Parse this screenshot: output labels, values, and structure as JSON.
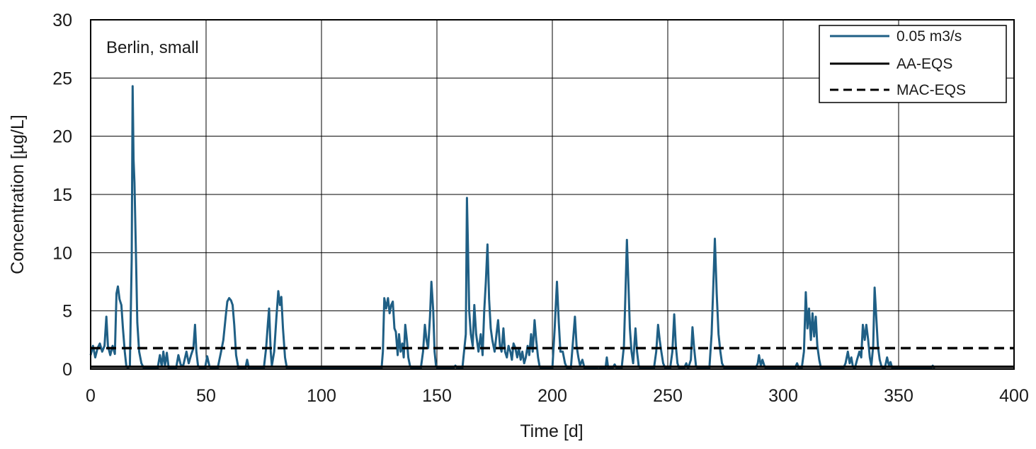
{
  "chart_data": {
    "type": "line",
    "annotation": "Berlin, small",
    "xlabel": "Time [d]",
    "ylabel": "Concentration [µg/L]",
    "xlim": [
      0,
      400
    ],
    "ylim": [
      0,
      30
    ],
    "xticks": [
      "0",
      "50",
      "100",
      "150",
      "200",
      "250",
      "300",
      "350",
      "400"
    ],
    "yticks": [
      "0",
      "5",
      "10",
      "15",
      "20",
      "25",
      "30"
    ],
    "grid": true,
    "legend_position": "top-right",
    "legend": [
      "0.05 m3/s",
      "AA-EQS",
      "MAC-EQS"
    ],
    "series": [
      {
        "name": "0.05 m3/s",
        "color": "#1f5f85",
        "style": "solid",
        "points": [
          [
            0,
            1.2
          ],
          [
            1,
            2.0
          ],
          [
            2,
            1.0
          ],
          [
            3,
            1.8
          ],
          [
            4,
            2.2
          ],
          [
            5,
            1.5
          ],
          [
            6,
            2.0
          ],
          [
            6.8,
            4.5
          ],
          [
            7.5,
            2.0
          ],
          [
            8.5,
            1.2
          ],
          [
            9.5,
            2.0
          ],
          [
            10.5,
            1.3
          ],
          [
            11.2,
            6.5
          ],
          [
            11.8,
            7.1
          ],
          [
            12.5,
            6.0
          ],
          [
            13.3,
            5.5
          ],
          [
            14,
            3.5
          ],
          [
            14.8,
            1.5
          ],
          [
            15.5,
            0.2
          ],
          [
            16.2,
            0.1
          ],
          [
            17,
            0.3
          ],
          [
            17.8,
            9.5
          ],
          [
            18.2,
            24.3
          ],
          [
            18.6,
            18.0
          ],
          [
            19,
            16.0
          ],
          [
            19.5,
            11.0
          ],
          [
            20.2,
            4.0
          ],
          [
            21,
            1.5
          ],
          [
            22,
            0.5
          ],
          [
            23,
            0.1
          ],
          [
            25,
            0.05
          ],
          [
            29,
            0.05
          ],
          [
            30,
            1.2
          ],
          [
            30.8,
            0.2
          ],
          [
            31.5,
            1.5
          ],
          [
            32.2,
            0.3
          ],
          [
            33,
            1.4
          ],
          [
            33.8,
            0.1
          ],
          [
            35,
            0.05
          ],
          [
            37,
            0.05
          ],
          [
            38,
            1.2
          ],
          [
            39,
            0.4
          ],
          [
            40,
            0.2
          ],
          [
            41.5,
            1.5
          ],
          [
            42.5,
            0.5
          ],
          [
            43.5,
            1.2
          ],
          [
            44.5,
            1.8
          ],
          [
            45.2,
            3.8
          ],
          [
            45.8,
            1.5
          ],
          [
            46.5,
            0.3
          ],
          [
            47.5,
            0.05
          ],
          [
            49.5,
            0.05
          ],
          [
            50.5,
            1.1
          ],
          [
            51.5,
            0.2
          ],
          [
            52.5,
            0.05
          ],
          [
            55,
            0.05
          ],
          [
            56.5,
            1.5
          ],
          [
            57.5,
            2.5
          ],
          [
            58.5,
            4.5
          ],
          [
            59.2,
            5.8
          ],
          [
            60,
            6.1
          ],
          [
            60.8,
            5.9
          ],
          [
            61.5,
            5.5
          ],
          [
            62.2,
            3.8
          ],
          [
            63,
            1.2
          ],
          [
            64,
            0.1
          ],
          [
            65,
            0.05
          ],
          [
            67,
            0.05
          ],
          [
            67.8,
            0.8
          ],
          [
            68.6,
            0.05
          ],
          [
            75,
            0.05
          ],
          [
            76,
            1.8
          ],
          [
            76.8,
            4.0
          ],
          [
            77.3,
            5.2
          ],
          [
            78,
            1.5
          ],
          [
            78.5,
            0.3
          ],
          [
            79.5,
            1.5
          ],
          [
            80.5,
            4.5
          ],
          [
            81.3,
            6.7
          ],
          [
            82,
            5.5
          ],
          [
            82.6,
            6.2
          ],
          [
            83.3,
            3.5
          ],
          [
            84.2,
            1.0
          ],
          [
            85,
            0.1
          ],
          [
            86,
            0.05
          ],
          [
            90,
            0.05
          ],
          [
            92,
            0.15
          ],
          [
            94,
            0.05
          ],
          [
            110,
            0.05
          ],
          [
            126,
            0.05
          ],
          [
            126.6,
            1.5
          ],
          [
            127.2,
            6.1
          ],
          [
            128,
            5.2
          ],
          [
            128.8,
            6.1
          ],
          [
            129.5,
            4.8
          ],
          [
            130.2,
            5.5
          ],
          [
            130.9,
            5.8
          ],
          [
            131.6,
            3.5
          ],
          [
            132.2,
            3.2
          ],
          [
            133,
            1.2
          ],
          [
            133.6,
            3.0
          ],
          [
            134.3,
            1.5
          ],
          [
            135,
            2.2
          ],
          [
            135.6,
            1.0
          ],
          [
            136.3,
            3.8
          ],
          [
            137,
            2.5
          ],
          [
            137.6,
            1.0
          ],
          [
            138.3,
            0.3
          ],
          [
            139,
            0.05
          ],
          [
            143,
            0.05
          ],
          [
            144,
            1.5
          ],
          [
            144.8,
            3.8
          ],
          [
            145.5,
            2.5
          ],
          [
            146.2,
            1.8
          ],
          [
            147,
            4.5
          ],
          [
            147.6,
            7.5
          ],
          [
            148.4,
            5.0
          ],
          [
            149,
            1.5
          ],
          [
            149.6,
            0.3
          ],
          [
            150.3,
            0.05
          ],
          [
            157,
            0.05
          ],
          [
            158,
            0.3
          ],
          [
            159,
            0.05
          ],
          [
            161,
            0.05
          ],
          [
            162.5,
            3.0
          ],
          [
            163,
            14.7
          ],
          [
            163.5,
            10.0
          ],
          [
            164,
            5.0
          ],
          [
            164.7,
            3.0
          ],
          [
            165.5,
            2.0
          ],
          [
            166.2,
            5.5
          ],
          [
            167,
            3.0
          ],
          [
            168,
            1.5
          ],
          [
            169,
            3.0
          ],
          [
            169.8,
            1.2
          ],
          [
            170.5,
            5.0
          ],
          [
            171.2,
            7.5
          ],
          [
            171.9,
            10.7
          ],
          [
            172.6,
            6.0
          ],
          [
            173.3,
            3.5
          ],
          [
            174,
            2.5
          ],
          [
            175,
            1.5
          ],
          [
            175.8,
            3.0
          ],
          [
            176.5,
            4.2
          ],
          [
            177.3,
            2.0
          ],
          [
            178,
            1.5
          ],
          [
            178.8,
            3.5
          ],
          [
            179.5,
            1.5
          ],
          [
            180.3,
            1.0
          ],
          [
            181,
            2.0
          ],
          [
            181.8,
            1.5
          ],
          [
            182.5,
            0.8
          ],
          [
            183.2,
            2.2
          ],
          [
            184,
            1.8
          ],
          [
            184.8,
            1.0
          ],
          [
            185.5,
            1.8
          ],
          [
            186.3,
            0.8
          ],
          [
            187,
            1.5
          ],
          [
            187.8,
            0.5
          ],
          [
            188.5,
            1.0
          ],
          [
            189.3,
            2.0
          ],
          [
            190,
            1.2
          ],
          [
            190.8,
            3.0
          ],
          [
            191.5,
            1.5
          ],
          [
            192.3,
            4.2
          ],
          [
            193,
            2.5
          ],
          [
            193.8,
            1.0
          ],
          [
            194.5,
            0.2
          ],
          [
            195.3,
            0.05
          ],
          [
            200,
            0.05
          ],
          [
            201,
            3.5
          ],
          [
            202,
            7.5
          ],
          [
            202.8,
            4.0
          ],
          [
            203.5,
            1.5
          ],
          [
            204.5,
            1.5
          ],
          [
            205.5,
            0.5
          ],
          [
            206.5,
            0.05
          ],
          [
            208,
            0.05
          ],
          [
            209,
            2.5
          ],
          [
            209.8,
            4.5
          ],
          [
            210.5,
            2.0
          ],
          [
            211.3,
            1.0
          ],
          [
            212,
            0.3
          ],
          [
            213,
            0.8
          ],
          [
            214,
            0.05
          ],
          [
            219,
            0.05
          ],
          [
            220,
            0.2
          ],
          [
            221,
            0.05
          ],
          [
            223,
            0.05
          ],
          [
            223.6,
            1.0
          ],
          [
            224.2,
            0.05
          ],
          [
            226,
            0.05
          ],
          [
            227,
            0.4
          ],
          [
            228,
            0.05
          ],
          [
            230,
            0.05
          ],
          [
            231,
            2.0
          ],
          [
            231.6,
            6.0
          ],
          [
            232.3,
            11.1
          ],
          [
            233,
            7.0
          ],
          [
            233.6,
            3.5
          ],
          [
            234.3,
            1.5
          ],
          [
            235,
            0.5
          ],
          [
            236,
            3.5
          ],
          [
            236.7,
            1.5
          ],
          [
            237.4,
            0.3
          ],
          [
            238.2,
            0.05
          ],
          [
            244,
            0.05
          ],
          [
            245,
            1.5
          ],
          [
            245.8,
            3.8
          ],
          [
            246.5,
            2.5
          ],
          [
            247.2,
            1.5
          ],
          [
            248,
            0.5
          ],
          [
            249,
            0.05
          ],
          [
            251,
            0.05
          ],
          [
            252,
            1.5
          ],
          [
            252.8,
            4.7
          ],
          [
            253.5,
            2.0
          ],
          [
            254.2,
            0.5
          ],
          [
            255,
            0.05
          ],
          [
            257,
            0.05
          ],
          [
            258,
            0.5
          ],
          [
            258.8,
            0.05
          ],
          [
            260,
            0.8
          ],
          [
            260.7,
            3.6
          ],
          [
            261.4,
            1.8
          ],
          [
            262.2,
            0.3
          ],
          [
            263,
            0.05
          ],
          [
            268,
            0.05
          ],
          [
            269,
            3.0
          ],
          [
            269.8,
            7.5
          ],
          [
            270.4,
            11.2
          ],
          [
            271.2,
            6.5
          ],
          [
            272,
            3.0
          ],
          [
            272.8,
            1.5
          ],
          [
            273.5,
            0.5
          ],
          [
            274.5,
            0.1
          ],
          [
            276,
            0.05
          ],
          [
            288,
            0.05
          ],
          [
            289,
            0.5
          ],
          [
            289.5,
            1.2
          ],
          [
            290.3,
            0.3
          ],
          [
            291,
            0.8
          ],
          [
            291.8,
            0.3
          ],
          [
            292.5,
            0.05
          ],
          [
            305,
            0.05
          ],
          [
            306,
            0.5
          ],
          [
            306.8,
            0.05
          ],
          [
            308,
            0.05
          ],
          [
            309,
            1.5
          ],
          [
            309.8,
            6.6
          ],
          [
            310.5,
            3.5
          ],
          [
            311.2,
            5.2
          ],
          [
            312,
            2.5
          ],
          [
            312.7,
            4.8
          ],
          [
            313.4,
            2.8
          ],
          [
            314.1,
            4.5
          ],
          [
            314.8,
            2.0
          ],
          [
            315.6,
            0.8
          ],
          [
            316.4,
            0.05
          ],
          [
            326,
            0.05
          ],
          [
            327,
            0.5
          ],
          [
            328,
            1.5
          ],
          [
            328.8,
            0.5
          ],
          [
            329.5,
            1.0
          ],
          [
            330.2,
            0.2
          ],
          [
            331,
            0.05
          ],
          [
            332,
            0.8
          ],
          [
            333,
            1.5
          ],
          [
            333.8,
            1.0
          ],
          [
            334.5,
            3.8
          ],
          [
            335.3,
            2.5
          ],
          [
            336,
            3.8
          ],
          [
            336.8,
            2.5
          ],
          [
            337.5,
            1.0
          ],
          [
            338.2,
            0.3
          ],
          [
            339,
            2.0
          ],
          [
            339.6,
            7.0
          ],
          [
            340.3,
            4.5
          ],
          [
            341,
            2.0
          ],
          [
            341.8,
            0.8
          ],
          [
            342.5,
            0.3
          ],
          [
            343.2,
            0.05
          ],
          [
            344,
            0.05
          ],
          [
            345,
            1.0
          ],
          [
            345.8,
            0.3
          ],
          [
            346.5,
            0.6
          ],
          [
            347.3,
            0.05
          ],
          [
            350,
            0.05
          ],
          [
            364,
            0.05
          ],
          [
            364.8,
            0.3
          ],
          [
            365.5,
            0.05
          ]
        ]
      },
      {
        "name": "AA-EQS",
        "color": "#000000",
        "style": "solid",
        "value": 0.2
      },
      {
        "name": "MAC-EQS",
        "color": "#000000",
        "style": "dashed",
        "value": 1.8
      }
    ]
  }
}
